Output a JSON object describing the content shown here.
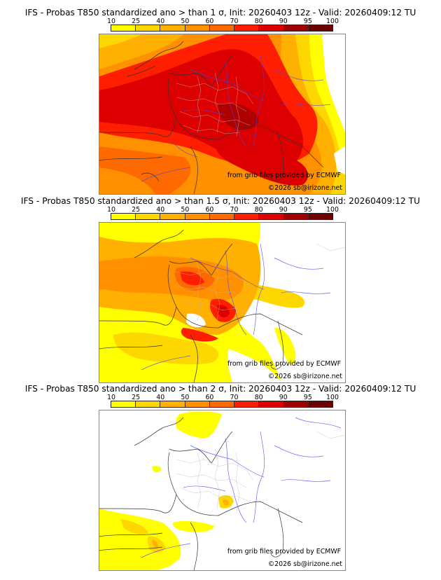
{
  "colorbar": {
    "ticks": [
      "10",
      "25",
      "40",
      "50",
      "60",
      "70",
      "80",
      "90",
      "95",
      "100"
    ],
    "colors": [
      "#ffff00",
      "#ffd700",
      "#ffb000",
      "#ff9000",
      "#ff6a00",
      "#ff1e00",
      "#dc0000",
      "#a00000",
      "#6e0000"
    ]
  },
  "panels": [
    {
      "title": "IFS - Probas T850  standardized ano > than 1 σ, Init: 20260403 12z - Valid: 20260409:12 TU",
      "threshold": "1 σ"
    },
    {
      "title": "IFS - Probas T850  standardized ano > than 1.5 σ, Init: 20260403 12z - Valid: 20260409:12 TU",
      "threshold": "1.5 σ"
    },
    {
      "title": "IFS - Probas T850  standardized ano > than 2 σ, Init: 20260403 12z - Valid: 20260409:12 TU",
      "threshold": "2 σ"
    }
  ],
  "credits": {
    "source": "from grib files provided by ECMWF",
    "copyright": "©2026 sb@irizone.net"
  }
}
